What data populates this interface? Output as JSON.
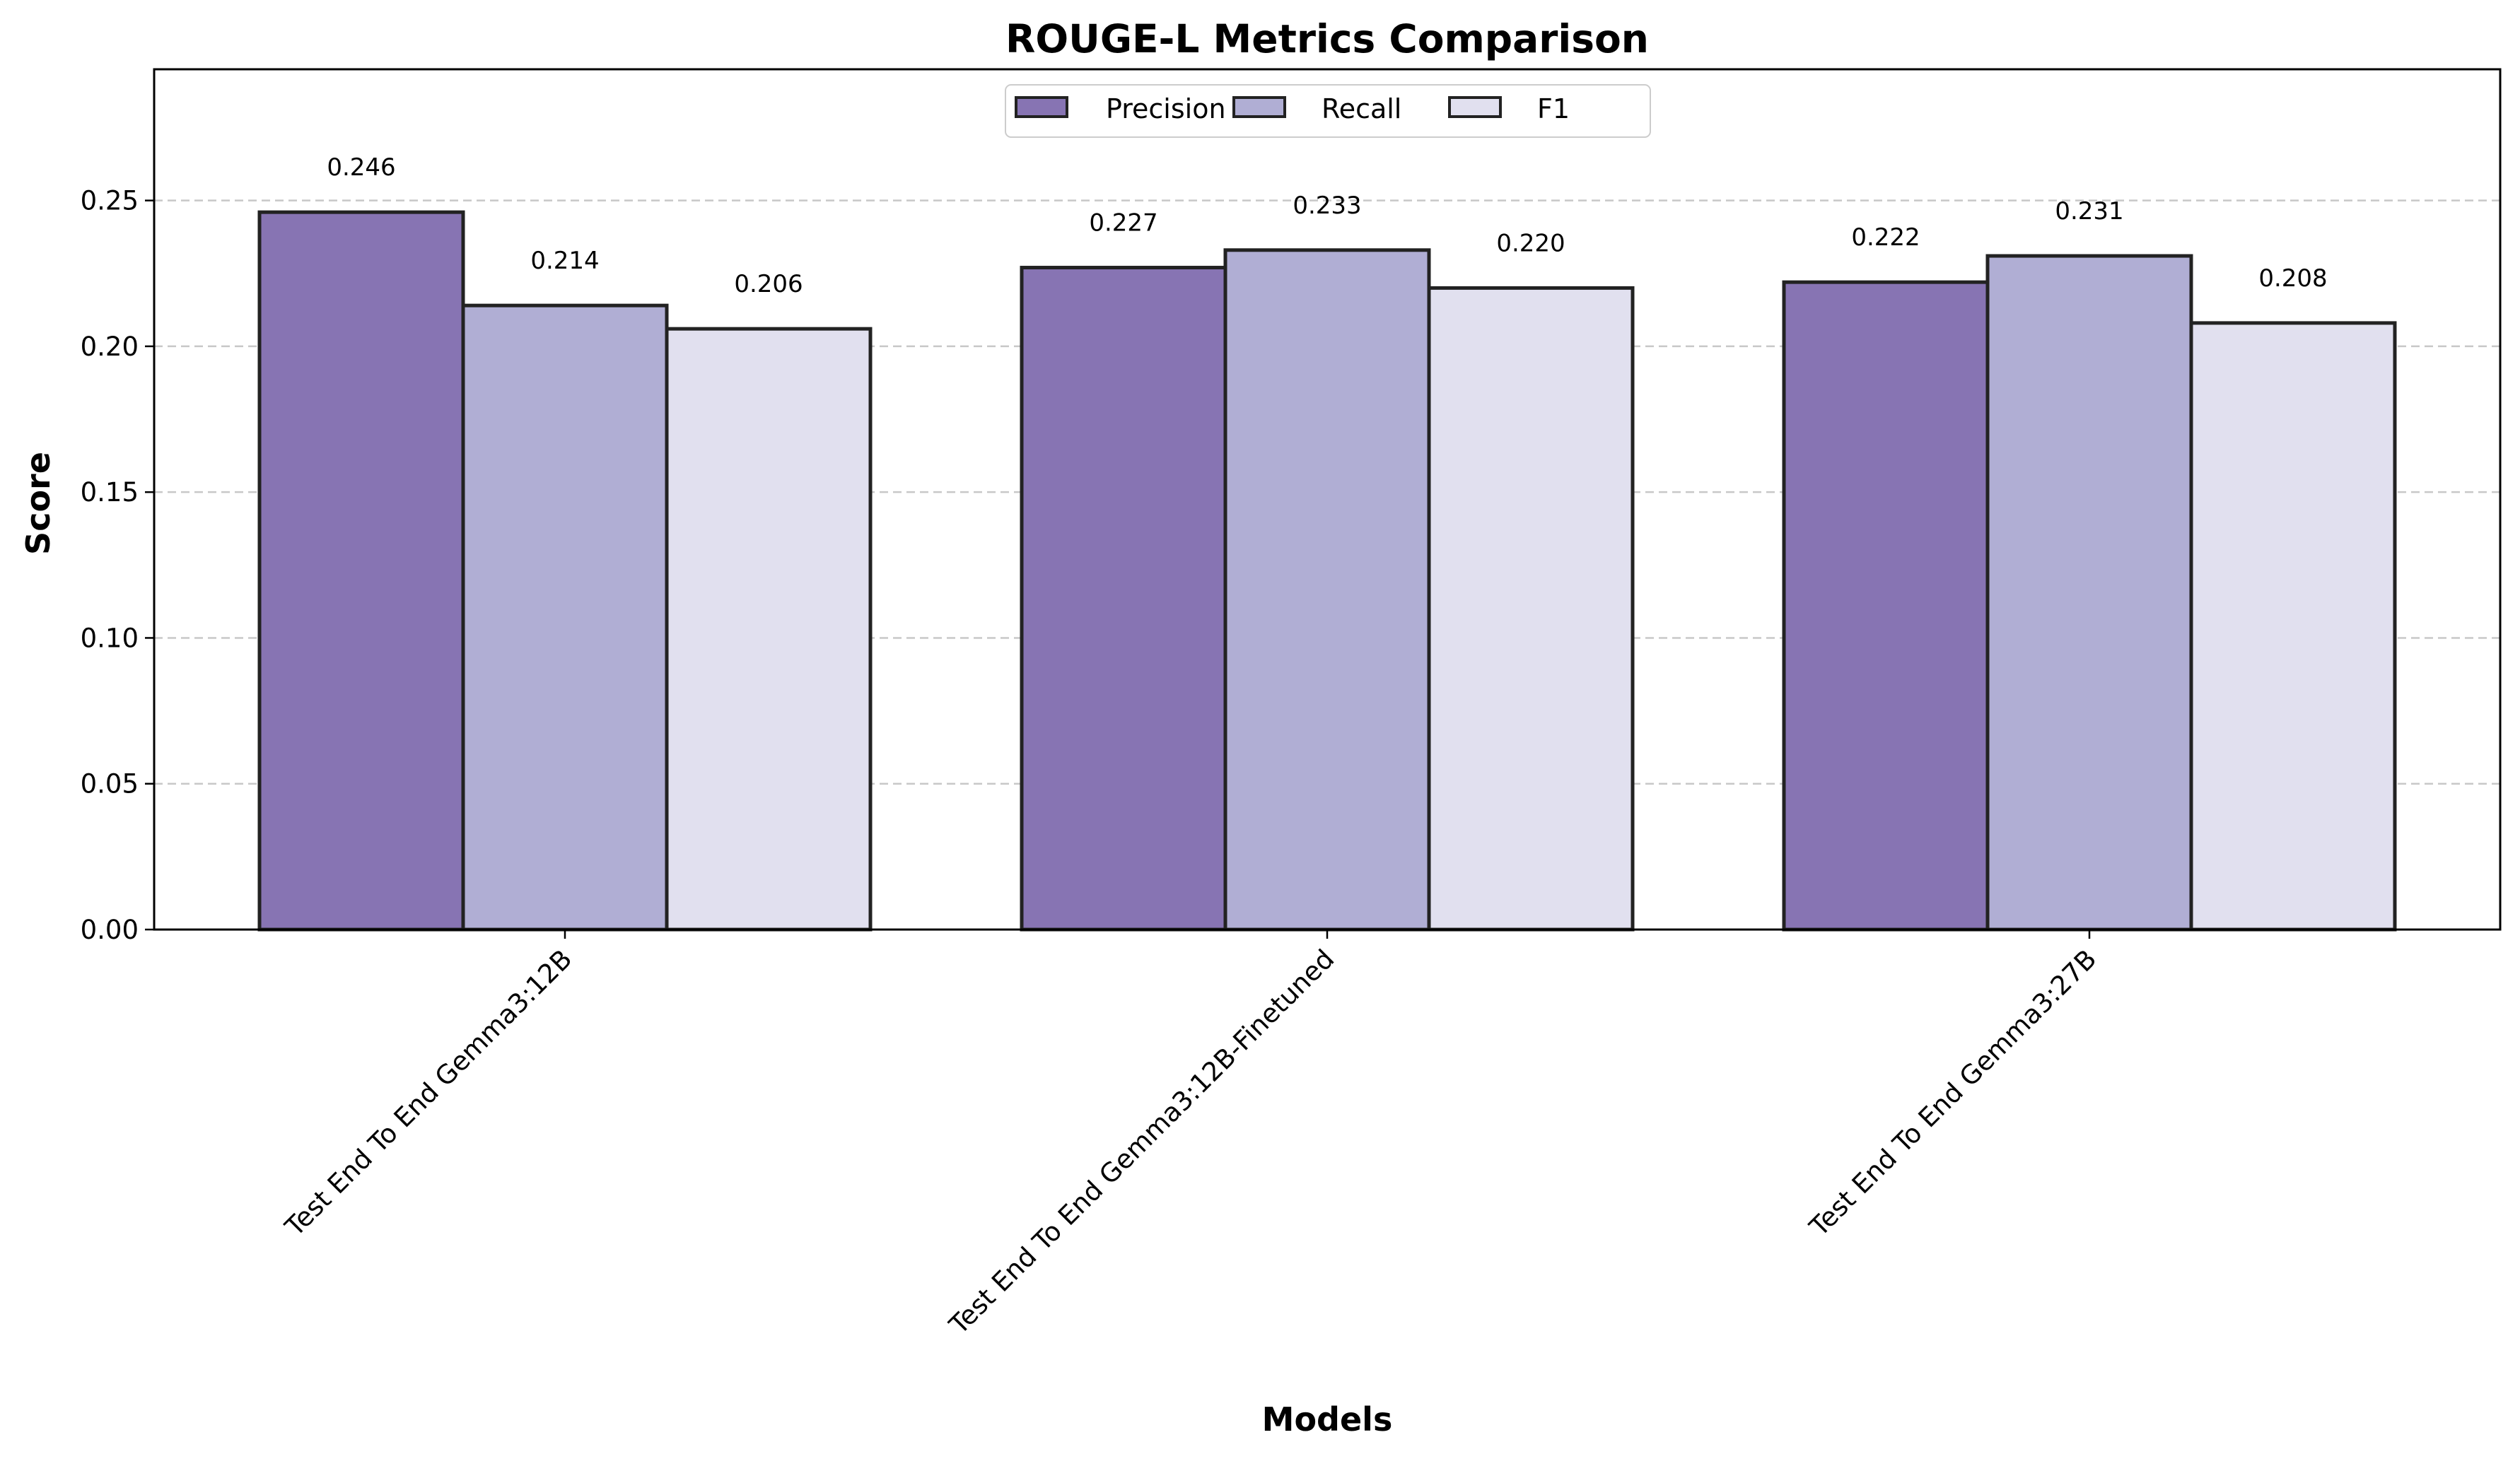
{
  "chart_data": {
    "type": "bar",
    "title": "ROUGE-L Metrics Comparison",
    "xlabel": "Models",
    "ylabel": "Score",
    "categories": [
      "Test End To End Gemma3:12B",
      "Test End To End Gemma3:12B-Finetuned",
      "Test End To End Gemma3:27B"
    ],
    "series": [
      {
        "name": "Precision",
        "values": [
          0.246,
          0.227,
          0.222
        ],
        "color": "#8774b3"
      },
      {
        "name": "Recall",
        "values": [
          0.214,
          0.233,
          0.231
        ],
        "color": "#b0aed4"
      },
      {
        "name": "F1",
        "values": [
          0.206,
          0.22,
          0.208
        ],
        "color": "#e1e0ef"
      }
    ],
    "data_labels": [
      [
        "0.246",
        "0.214",
        "0.206"
      ],
      [
        "0.227",
        "0.233",
        "0.220"
      ],
      [
        "0.222",
        "0.231",
        "0.208"
      ]
    ],
    "yticks": [
      "0.00",
      "0.05",
      "0.10",
      "0.15",
      "0.20",
      "0.25"
    ],
    "ylim": [
      0,
      0.295
    ],
    "grid": "y-dashed",
    "legend_position": "top-center",
    "bar_edge_color": "#222222",
    "grid_color": "#c8c8c8"
  }
}
